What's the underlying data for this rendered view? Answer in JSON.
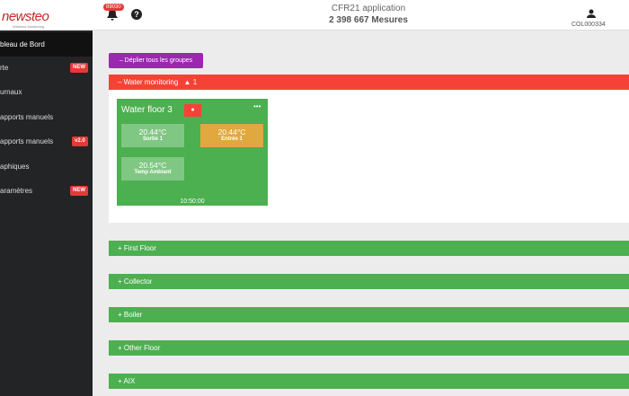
{
  "header": {
    "logo": "newsteo",
    "tagline": "Wireless Monitoring",
    "notification_count": "89030",
    "help": "?",
    "app_title": "CFR21 application",
    "measures": "2 398 667 Mesures",
    "user": "COL000334"
  },
  "sidebar": {
    "items": [
      {
        "label": "bleau de Bord"
      },
      {
        "label": "rte",
        "badge": "NEW"
      },
      {
        "label": "urnaux"
      },
      {
        "label": "apports manuels"
      },
      {
        "label": "apports manuels",
        "badge": "v2.0"
      },
      {
        "label": "aphiques"
      },
      {
        "label": "aramètres",
        "badge": "NEW"
      }
    ]
  },
  "main": {
    "expand_button": "– Déplier tous les groupes",
    "group": {
      "title": "– Water monitoring",
      "alert_count": "1",
      "card": {
        "title": "Water floor 3",
        "menu": "•••",
        "readings": [
          {
            "value": "20.44°C",
            "label": "Sortie 1"
          },
          {
            "value": "20.44°C",
            "label": "Entrée 1"
          },
          {
            "value": "20.54°C",
            "label": "Temp Ambiant"
          }
        ],
        "time": "10:50:00"
      }
    },
    "collapsed_groups": [
      "+ First Floor",
      "+ Collector",
      "+ Boiler",
      "+ Other Floor",
      "+ AIX"
    ]
  }
}
